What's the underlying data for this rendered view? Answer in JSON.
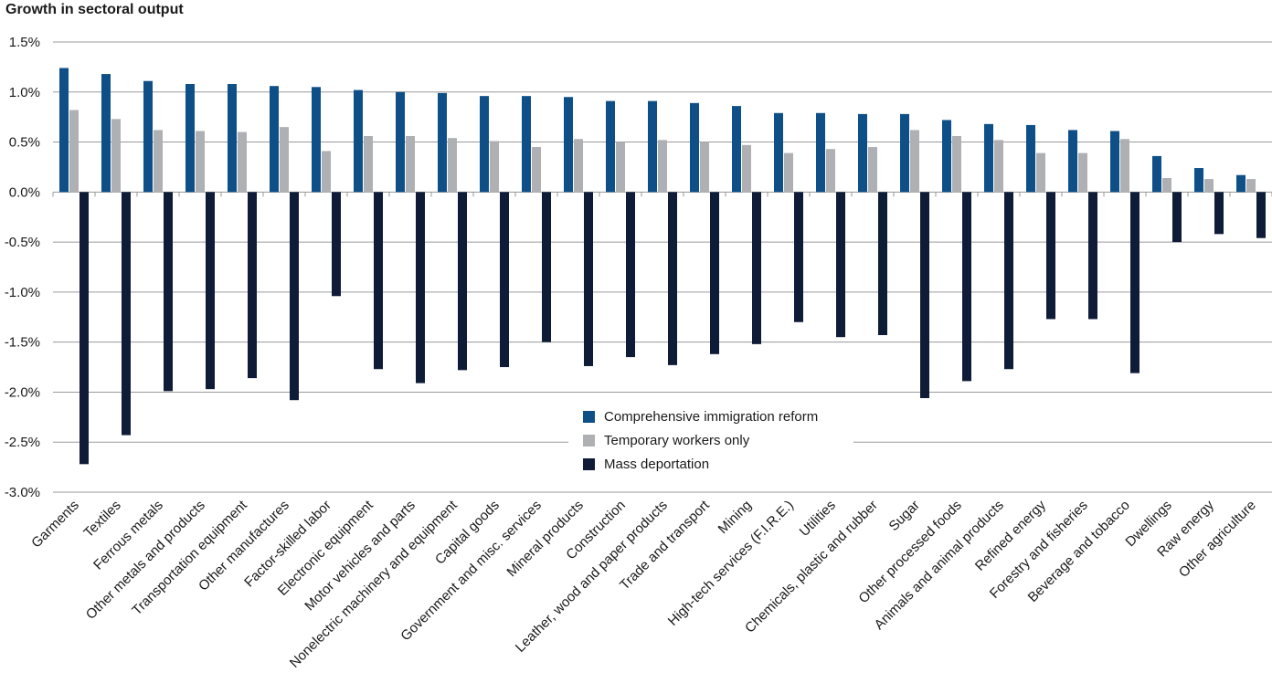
{
  "chart_data": {
    "type": "bar",
    "title": "Growth in sectoral output",
    "ylim": [
      -3.0,
      1.5
    ],
    "yticks": [
      "1.5%",
      "1.0%",
      "0.5%",
      "0.0%",
      "-0.5%",
      "-1.0%",
      "-1.5%",
      "-2.0%",
      "-2.5%",
      "-3.0%"
    ],
    "grid": true,
    "legend_position": "center-bottom",
    "categories": [
      "Garments",
      "Textiles",
      "Ferrous metals",
      "Other metals and products",
      "Transportation equipment",
      "Other manufactures",
      "Factor-skilled labor",
      "Electronic equipment",
      "Motor vehicles and parts",
      "Nonelectric machinery and equipment",
      "Capital goods",
      "Government and misc. services",
      "Mineral products",
      "Construction",
      "Leather, wood and paper products",
      "Trade and transport",
      "Mining",
      "High-tech services (F.I.R.E.)",
      "Utilities",
      "Chemicals, plastic and rubber",
      "Sugar",
      "Other processed foods",
      "Animals and animal products",
      "Refined energy",
      "Forestry and fisheries",
      "Beverage and tobacco",
      "Dwellings",
      "Raw energy",
      "Other agriculture"
    ],
    "series": [
      {
        "name": "Comprehensive immigration reform",
        "color": "#0e4f87",
        "values": [
          1.24,
          1.18,
          1.11,
          1.08,
          1.08,
          1.06,
          1.05,
          1.02,
          1.0,
          0.99,
          0.96,
          0.96,
          0.95,
          0.91,
          0.91,
          0.89,
          0.86,
          0.79,
          0.79,
          0.78,
          0.78,
          0.72,
          0.68,
          0.67,
          0.62,
          0.61,
          0.36,
          0.24,
          0.17
        ]
      },
      {
        "name": "Temporary workers only",
        "color": "#aeb0b3",
        "values": [
          0.82,
          0.73,
          0.62,
          0.61,
          0.6,
          0.65,
          0.41,
          0.56,
          0.56,
          0.54,
          0.51,
          0.45,
          0.53,
          0.5,
          0.52,
          0.5,
          0.47,
          0.39,
          0.43,
          0.45,
          0.62,
          0.56,
          0.52,
          0.39,
          0.39,
          0.53,
          0.14,
          0.13,
          0.13
        ]
      },
      {
        "name": "Mass deportation",
        "color": "#0e1c37",
        "values": [
          -2.72,
          -2.43,
          -1.99,
          -1.97,
          -1.86,
          -2.08,
          -1.04,
          -1.77,
          -1.91,
          -1.78,
          -1.75,
          -1.5,
          -1.74,
          -1.65,
          -1.73,
          -1.62,
          -1.52,
          -1.3,
          -1.45,
          -1.43,
          -2.06,
          -1.89,
          -1.77,
          -1.27,
          -1.27,
          -1.81,
          -0.5,
          -0.42,
          -0.46
        ]
      }
    ]
  }
}
